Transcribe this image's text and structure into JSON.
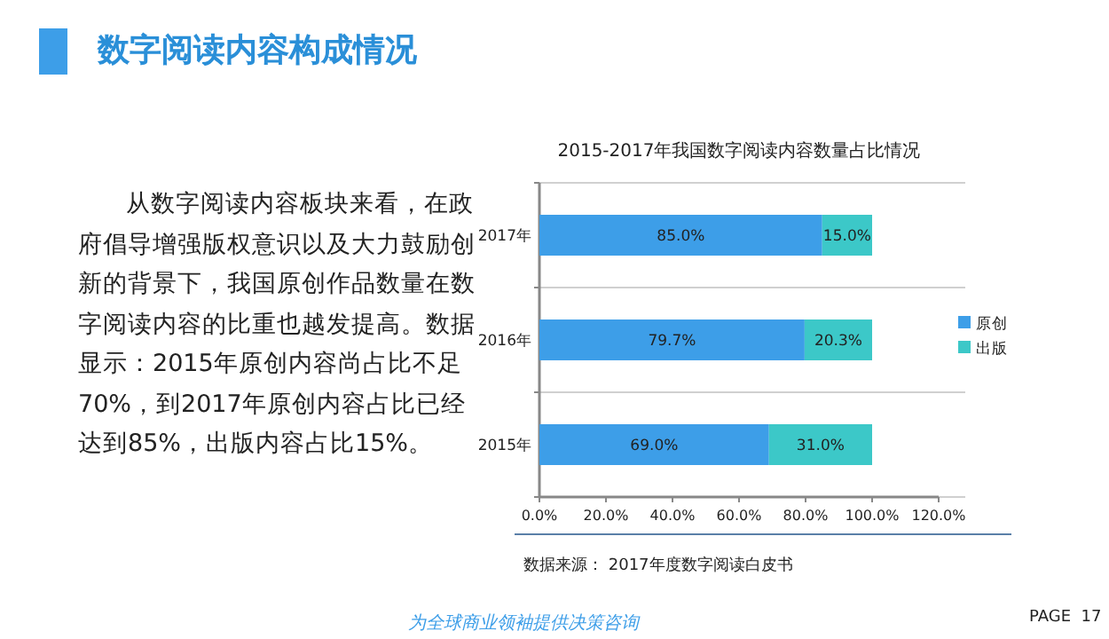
{
  "chart_data": {
    "type": "bar",
    "orientation": "horizontal",
    "stacked": true,
    "title": "2015-2017年我国数字阅读内容数量占比情况",
    "categories": [
      "2017年",
      "2016年",
      "2015年"
    ],
    "series": [
      {
        "name": "原创",
        "color": "#3d9ee8",
        "values": [
          85,
          79.7,
          69
        ],
        "value_labels": [
          "85.0%",
          "79.7%",
          "69.0%"
        ]
      },
      {
        "name": "出版",
        "color": "#3cc8c8",
        "values": [
          15,
          20.3,
          31
        ],
        "value_labels": [
          "15.0%",
          "20.3%",
          "31.0%"
        ]
      }
    ],
    "xlim": [
      0,
      120
    ],
    "xticks": [
      {
        "value": 0,
        "label": "0.0%"
      },
      {
        "value": 20,
        "label": "20.0%"
      },
      {
        "value": 40,
        "label": "40.0%"
      },
      {
        "value": 60,
        "label": "60.0%"
      },
      {
        "value": 80,
        "label": "80.0%"
      },
      {
        "value": 100,
        "label": "100.0%"
      },
      {
        "value": 120,
        "label": "120.0%"
      }
    ],
    "grid": "y",
    "legend": "right",
    "annotations": [
      "数字阅读内容构成情况",
      "从数字阅读内容板块来看，在政府倡导增强版权意识以及大力鼓励创新的背景下，我国原创作品数量在数字阅读内容的比重也越发提高。数据显示：2015年原创内容尚占比不足70%，到2017年原创内容占比已经达到85%，出版内容占比15%。",
      "数据来源： 2017年度数字阅读白皮书",
      "为全球商业领袖提供决策咨询",
      "PAGE  17"
    ]
  }
}
